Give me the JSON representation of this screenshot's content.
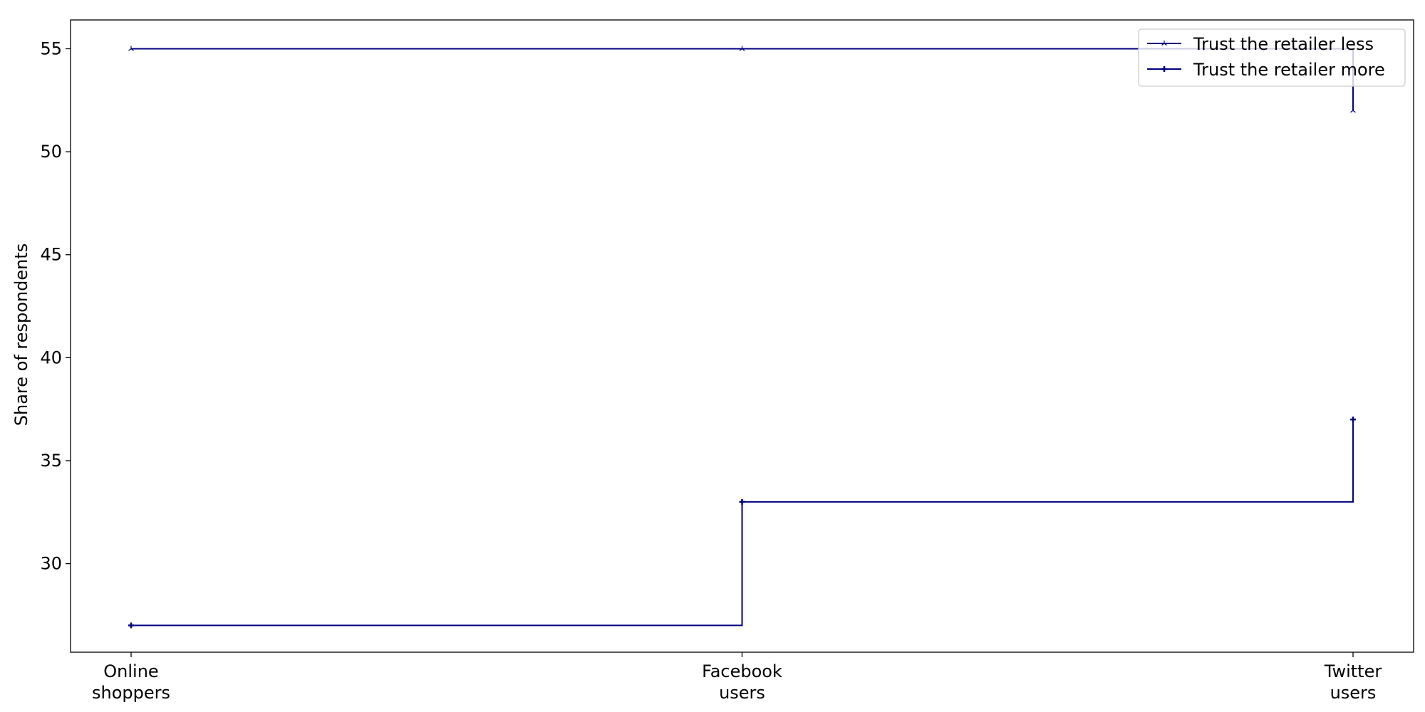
{
  "chart_data": {
    "type": "line",
    "step": "post",
    "title": "",
    "xlabel": "",
    "ylabel": "Share of respondents",
    "categories": [
      [
        "Online",
        "shoppers"
      ],
      [
        "Facebook",
        "users"
      ],
      [
        "Twitter",
        "users"
      ]
    ],
    "ylim": [
      25.7,
      56.4
    ],
    "yticks": [
      30,
      35,
      40,
      45,
      50,
      55
    ],
    "grid": false,
    "legend_position": "top-right",
    "series": [
      {
        "name": "Trust the retailer less",
        "values": [
          55,
          55,
          52
        ],
        "marker": "tri-up",
        "color": "#000080"
      },
      {
        "name": "Trust the retailer more",
        "values": [
          27,
          33,
          37
        ],
        "marker": "plus",
        "color": "#000080"
      }
    ]
  }
}
